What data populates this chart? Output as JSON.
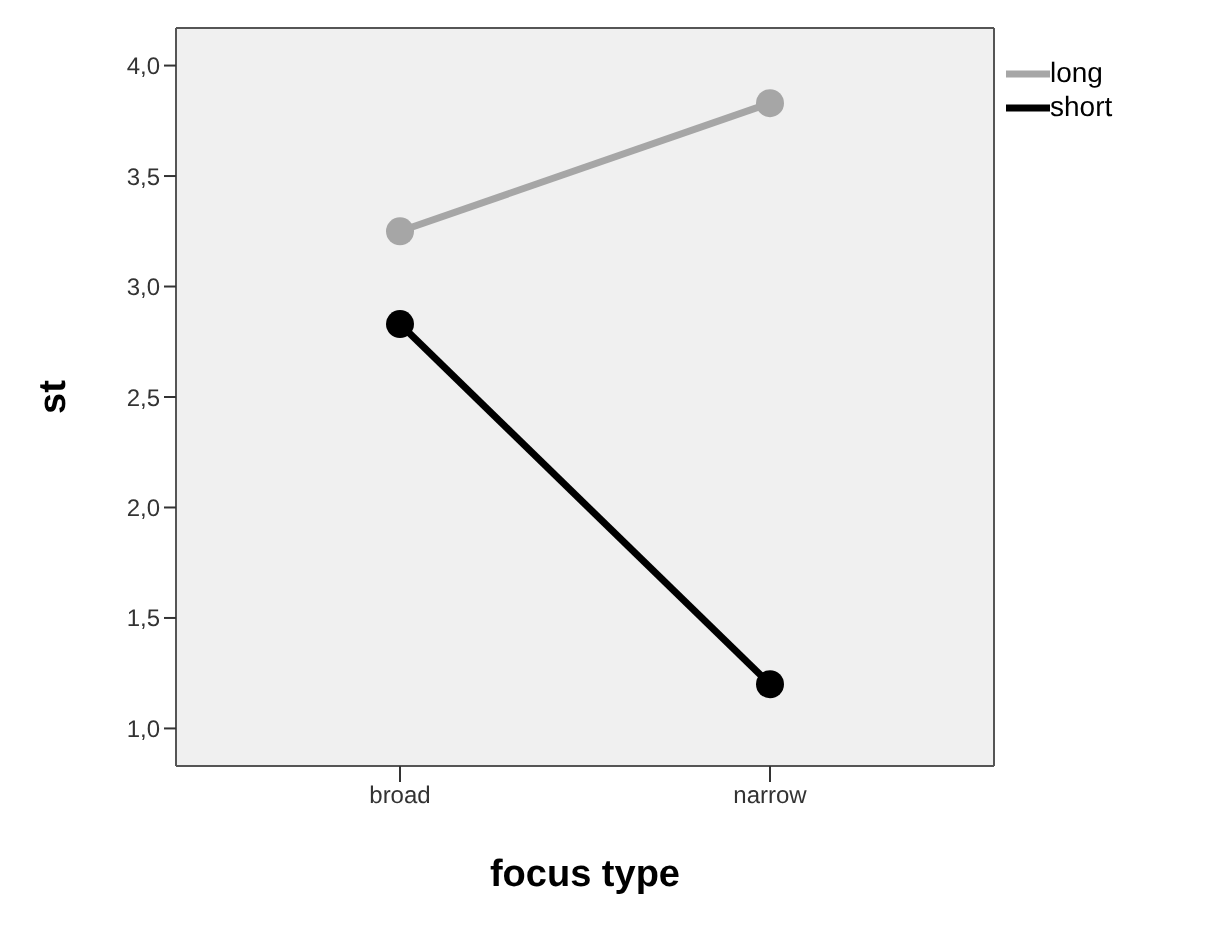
{
  "chart_data": {
    "type": "line",
    "xlabel": "focus type",
    "ylabel": "st",
    "categories": [
      "broad",
      "narrow"
    ],
    "series": [
      {
        "name": "long",
        "color": "#a6a6a6",
        "values": [
          3.25,
          3.83
        ]
      },
      {
        "name": "short",
        "color": "#000000",
        "values": [
          2.83,
          1.2
        ]
      }
    ],
    "ylim": [
      0.83,
      4.17
    ],
    "yticks": [
      {
        "value": 1,
        "label": "1,0"
      },
      {
        "value": 1.5,
        "label": "1,5"
      },
      {
        "value": 2,
        "label": "2,0"
      },
      {
        "value": 2.5,
        "label": "2,5"
      },
      {
        "value": 3,
        "label": "3,0"
      },
      {
        "value": 3.5,
        "label": "3,5"
      },
      {
        "value": 4,
        "label": "4,0"
      }
    ],
    "grid": false,
    "legend": "top right",
    "marker": "circle",
    "line_style": "solid"
  }
}
